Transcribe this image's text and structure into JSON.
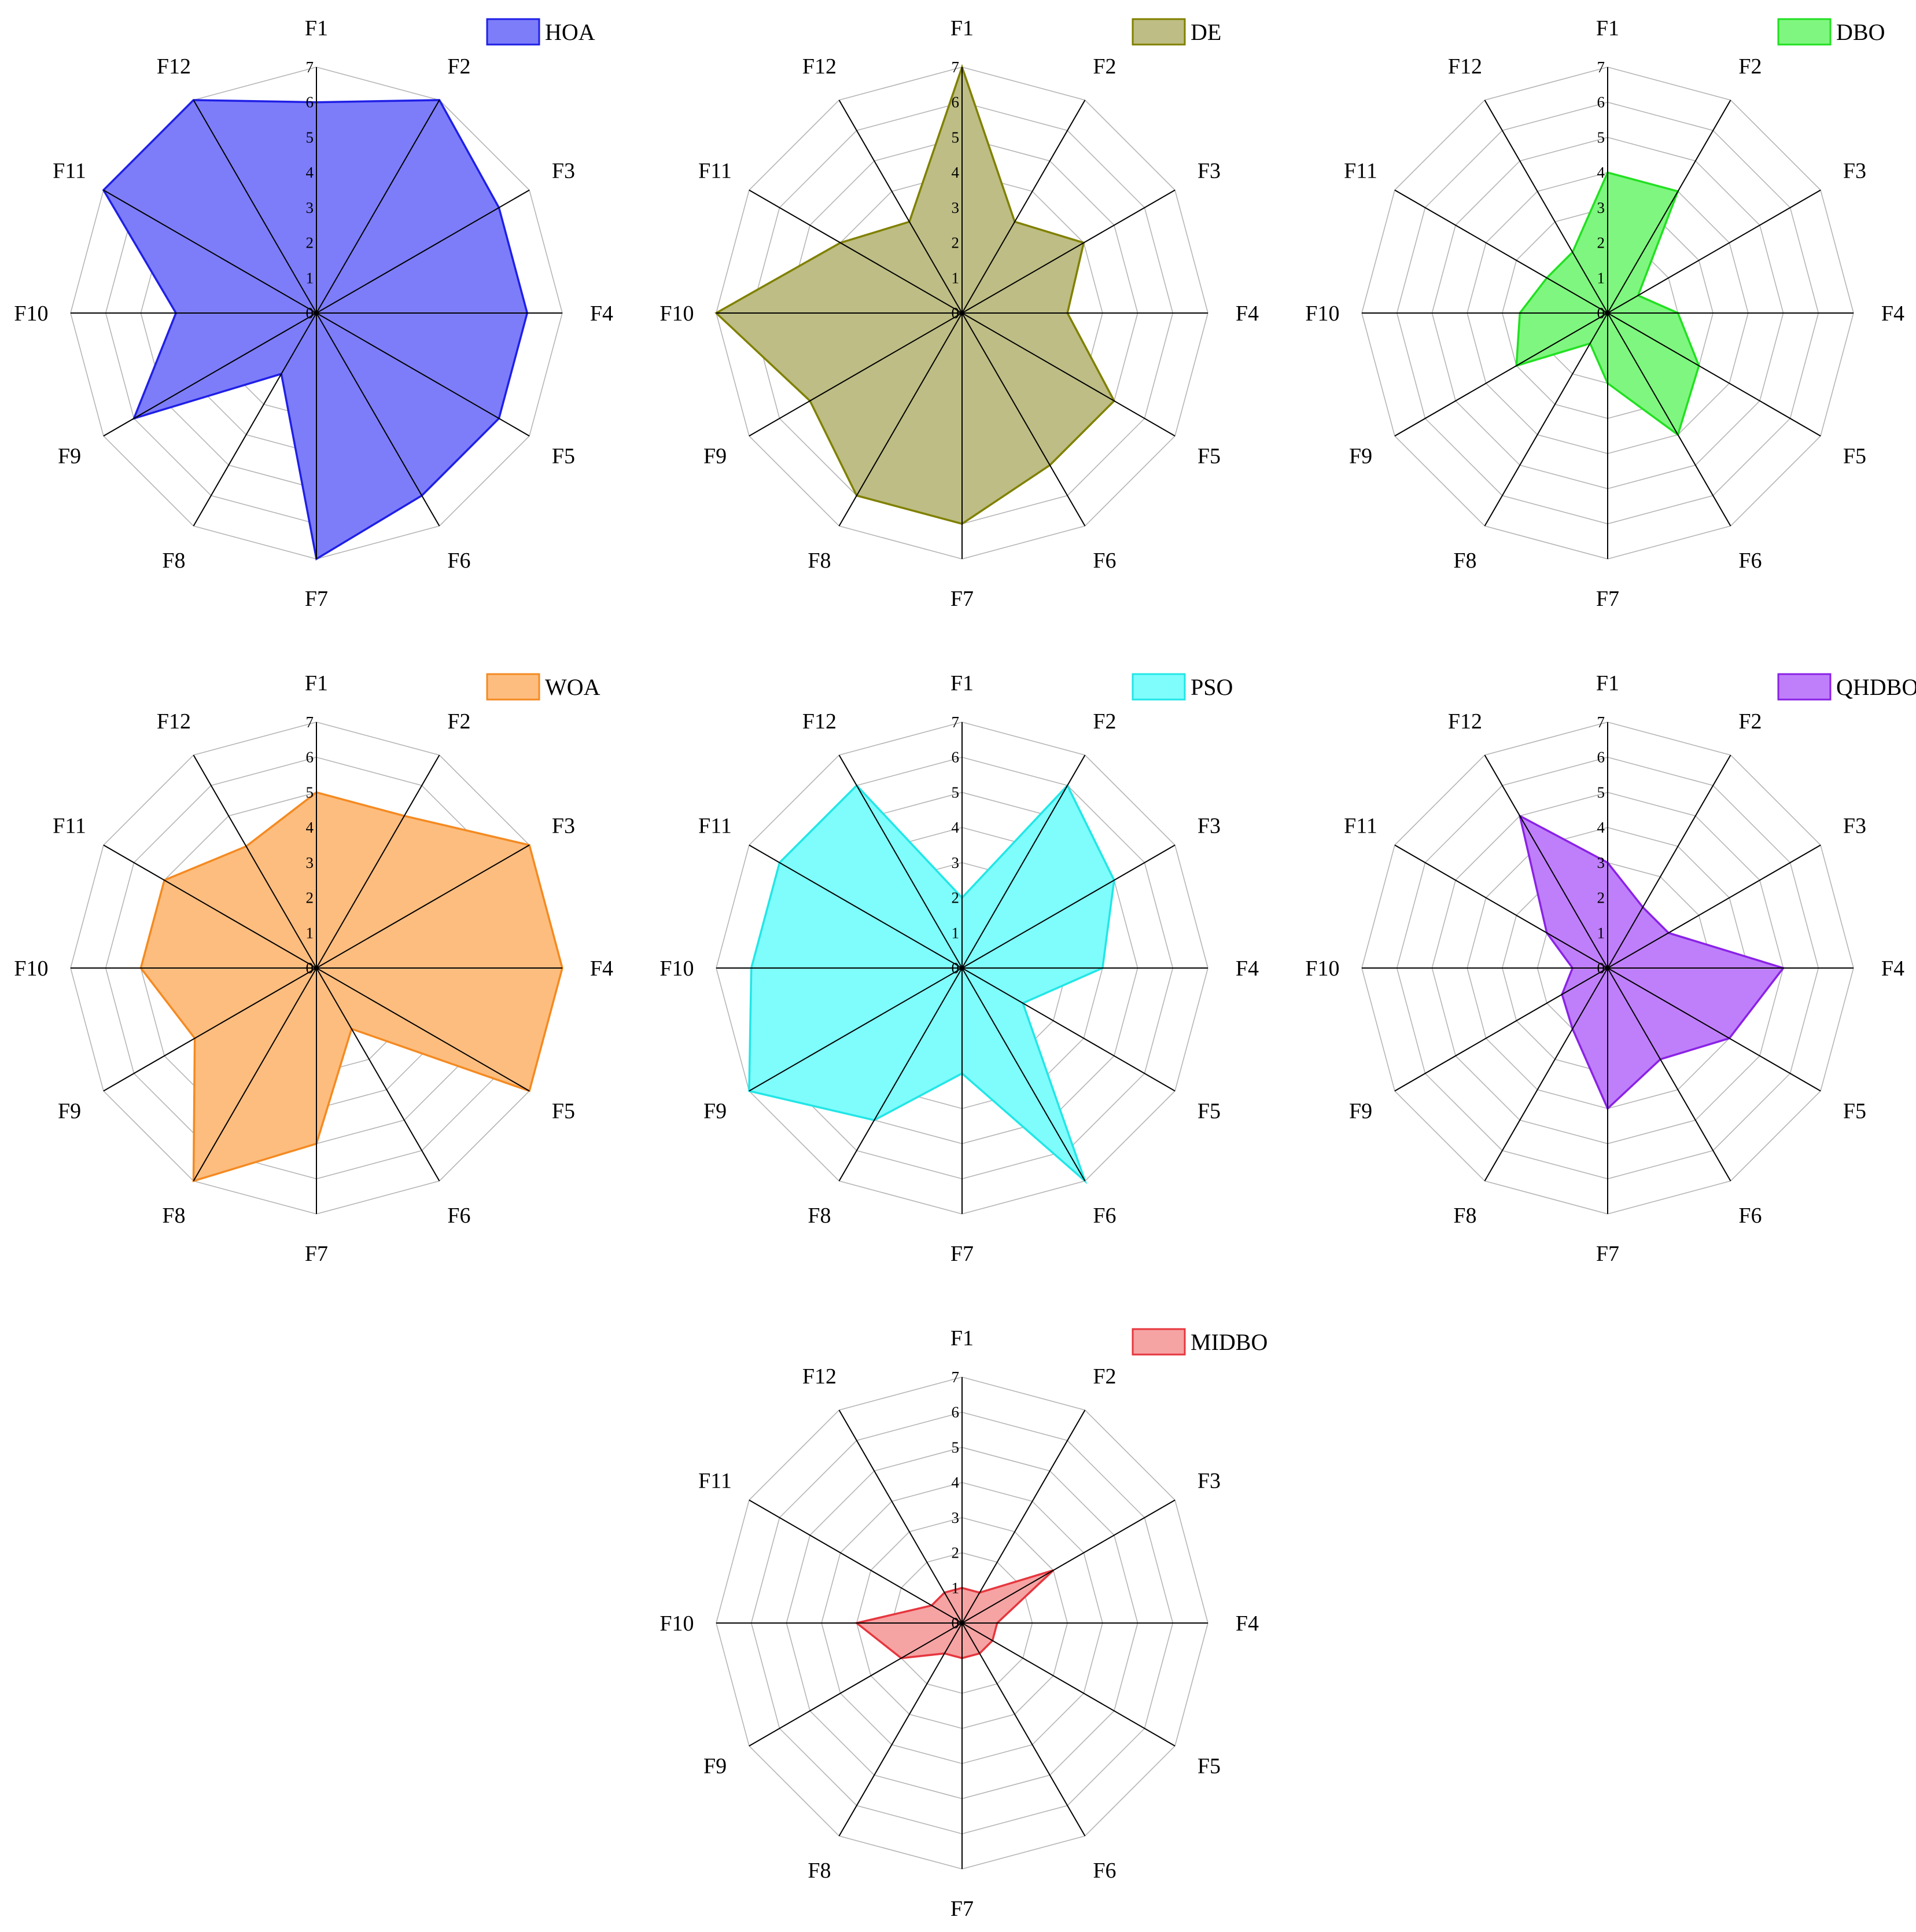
{
  "chart_data": [
    {
      "type": "radar",
      "legend": "HOA",
      "legend_position": "top-right",
      "categories": [
        "F1",
        "F2",
        "F3",
        "F4",
        "F5",
        "F6",
        "F7",
        "F8",
        "F9",
        "F10",
        "F11",
        "F12"
      ],
      "radial_ticks": [
        "0",
        "1",
        "2",
        "3",
        "4",
        "5",
        "6",
        "7"
      ],
      "rlim": [
        0,
        7
      ],
      "values": [
        6,
        7,
        6,
        6,
        6,
        6,
        7,
        2,
        6,
        4,
        7,
        7
      ],
      "color": "#1f1fe6",
      "fill": "#7d7dfa"
    },
    {
      "type": "radar",
      "legend": "DE",
      "legend_position": "top-right",
      "categories": [
        "F1",
        "F2",
        "F3",
        "F4",
        "F5",
        "F6",
        "F7",
        "F8",
        "F9",
        "F10",
        "F11",
        "F12"
      ],
      "radial_ticks": [
        "0",
        "1",
        "2",
        "3",
        "4",
        "5",
        "6",
        "7"
      ],
      "rlim": [
        0,
        7
      ],
      "values": [
        7,
        3,
        4,
        3,
        5,
        5,
        6,
        6,
        5,
        7,
        4,
        3
      ],
      "color": "#808000",
      "fill": "#bdbd85"
    },
    {
      "type": "radar",
      "legend": "DBO",
      "legend_position": "top-right",
      "categories": [
        "F1",
        "F2",
        "F3",
        "F4",
        "F5",
        "F6",
        "F7",
        "F8",
        "F9",
        "F10",
        "F11",
        "F12"
      ],
      "radial_ticks": [
        "0",
        "1",
        "2",
        "3",
        "4",
        "5",
        "6",
        "7"
      ],
      "rlim": [
        0,
        7
      ],
      "values": [
        4,
        4,
        1,
        2,
        3,
        4,
        2,
        1,
        3,
        2.5,
        2,
        2
      ],
      "color": "#22e022",
      "fill": "#7ff67f"
    },
    {
      "type": "radar",
      "legend": "WOA",
      "legend_position": "top-right",
      "categories": [
        "F1",
        "F2",
        "F3",
        "F4",
        "F5",
        "F6",
        "F7",
        "F8",
        "F9",
        "F10",
        "F11",
        "F12"
      ],
      "radial_ticks": [
        "0",
        "1",
        "2",
        "3",
        "4",
        "5",
        "6",
        "7"
      ],
      "rlim": [
        0,
        7
      ],
      "values": [
        5,
        5,
        7,
        7,
        7,
        2,
        5,
        7,
        4,
        5,
        5,
        4
      ],
      "color": "#f48a21",
      "fill": "#fdbd7f"
    },
    {
      "type": "radar",
      "legend": "PSO",
      "legend_position": "top-right",
      "categories": [
        "F1",
        "F2",
        "F3",
        "F4",
        "F5",
        "F6",
        "F7",
        "F8",
        "F9",
        "F10",
        "F11",
        "F12"
      ],
      "radial_ticks": [
        "0",
        "1",
        "2",
        "3",
        "4",
        "5",
        "6",
        "7"
      ],
      "rlim": [
        0,
        7
      ],
      "values": [
        2,
        6,
        5,
        4,
        2,
        7,
        3,
        5,
        7,
        6,
        6,
        6
      ],
      "color": "#22e6e6",
      "fill": "#7ffcfc"
    },
    {
      "type": "radar",
      "legend": "QHDBO",
      "legend_position": "top-right",
      "categories": [
        "F1",
        "F2",
        "F3",
        "F4",
        "F5",
        "F6",
        "F7",
        "F8",
        "F9",
        "F10",
        "F11",
        "F12"
      ],
      "radial_ticks": [
        "0",
        "1",
        "2",
        "3",
        "4",
        "5",
        "6",
        "7"
      ],
      "rlim": [
        0,
        7
      ],
      "values": [
        3,
        2,
        2,
        5,
        4,
        3,
        4,
        2,
        1.5,
        1,
        2,
        5
      ],
      "color": "#8a22e6",
      "fill": "#bf7ffa"
    },
    {
      "type": "radar",
      "legend": "MIDBO",
      "legend_position": "top-right",
      "categories": [
        "F1",
        "F2",
        "F3",
        "F4",
        "F5",
        "F6",
        "F7",
        "F8",
        "F9",
        "F10",
        "F11",
        "F12"
      ],
      "radial_ticks": [
        "0",
        "1",
        "2",
        "3",
        "4",
        "5",
        "6",
        "7"
      ],
      "rlim": [
        0,
        7
      ],
      "values": [
        1,
        1,
        3,
        1,
        1,
        1,
        1,
        1,
        2,
        3,
        1,
        1
      ],
      "color": "#e6363e",
      "fill": "#f6a3a3"
    }
  ]
}
